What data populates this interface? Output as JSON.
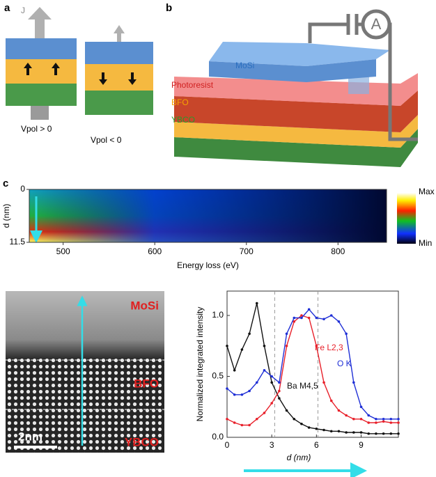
{
  "panel_labels": [
    "a",
    "b",
    "c"
  ],
  "panel_a": {
    "current_label": "J",
    "left_caption": "Vpol > 0",
    "right_caption": "Vpol < 0"
  },
  "panel_b": {
    "ammeter": "A",
    "layers": [
      "MoSi",
      "Photoresist",
      "BFO",
      "YBCO"
    ]
  },
  "micrograph": {
    "layers": [
      "MoSi",
      "BFO",
      "YBCO"
    ],
    "scale_bar": "2nm"
  },
  "chart_data": [
    {
      "type": "heatmap",
      "xlabel": "Energy loss (eV)",
      "ylabel": "d (nm)",
      "xlim": [
        463,
        853
      ],
      "xticks": [
        500,
        600,
        700,
        800
      ],
      "ylim": [
        0,
        11.5
      ],
      "yticks": [
        0,
        11.5
      ],
      "colorbar_labels": [
        "Max",
        "Min"
      ]
    },
    {
      "type": "line",
      "xlabel": "d (nm)",
      "ylabel": "Normalized integrated intensity",
      "x": [
        0,
        0.5,
        1,
        1.5,
        2,
        2.5,
        3,
        3.5,
        4,
        4.5,
        5,
        5.5,
        6,
        6.5,
        7,
        7.5,
        8,
        8.5,
        9,
        9.5,
        10,
        10.5,
        11,
        11.5
      ],
      "xlim": [
        0,
        11.5
      ],
      "xticks": [
        0,
        3,
        6,
        9
      ],
      "ylim": [
        0,
        1.2
      ],
      "yticks": [
        {
          "value": 0,
          "label": "0.0"
        },
        0.5,
        {
          "value": 1,
          "label": "1.0"
        }
      ],
      "vlines": [
        3.2,
        6.1
      ],
      "series": [
        {
          "name": "Ba M4,5",
          "color": "#111111",
          "values": [
            0.75,
            0.55,
            0.72,
            0.85,
            1.1,
            0.75,
            0.45,
            0.32,
            0.22,
            0.15,
            0.11,
            0.08,
            0.07,
            0.06,
            0.05,
            0.05,
            0.04,
            0.04,
            0.04,
            0.03,
            0.03,
            0.03,
            0.03,
            0.03
          ]
        },
        {
          "name": "Fe L2,3",
          "color": "#e8202a",
          "values": [
            0.15,
            0.12,
            0.1,
            0.1,
            0.15,
            0.2,
            0.28,
            0.38,
            0.75,
            0.95,
            1.0,
            0.98,
            0.75,
            0.45,
            0.3,
            0.22,
            0.18,
            0.15,
            0.15,
            0.12,
            0.12,
            0.13,
            0.12,
            0.12
          ]
        },
        {
          "name": "O K",
          "color": "#1f2fd6",
          "values": [
            0.4,
            0.35,
            0.35,
            0.38,
            0.45,
            0.55,
            0.5,
            0.45,
            0.85,
            0.98,
            0.98,
            1.05,
            0.98,
            0.97,
            1.0,
            0.95,
            0.85,
            0.45,
            0.25,
            0.18,
            0.15,
            0.15,
            0.15,
            0.15
          ]
        }
      ]
    }
  ]
}
